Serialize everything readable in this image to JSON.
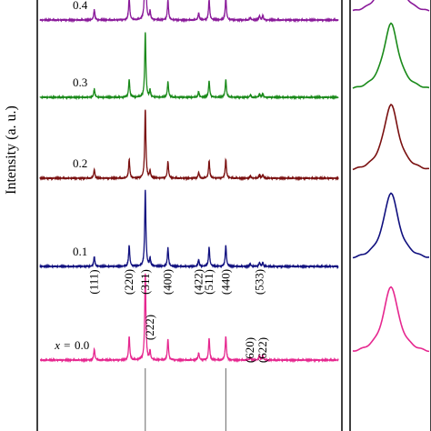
{
  "chart_data": {
    "type": "line",
    "title": "",
    "ylabel": "Intensity (a. u.)",
    "xlabel": "",
    "grid": false,
    "x_prefix": "x =",
    "x_range": [
      0,
      100
    ],
    "series": [
      {
        "name": "0.0",
        "color": "#e6278f",
        "baseline": 396,
        "peak_scale": 1.0
      },
      {
        "name": "0.1",
        "color": "#10107f",
        "baseline": 293,
        "peak_scale": 0.88
      },
      {
        "name": "0.2",
        "color": "#7a1010",
        "baseline": 196,
        "peak_scale": 0.8
      },
      {
        "name": "0.3",
        "color": "#1a8a1a",
        "baseline": 107,
        "peak_scale": 0.75
      },
      {
        "name": "0.4",
        "color": "#8a1a9a",
        "baseline": 22,
        "peak_scale": 0.95
      }
    ],
    "peaks": [
      {
        "pos": 18.2,
        "height": 12,
        "width": 0.35
      },
      {
        "pos": 29.9,
        "height": 26,
        "width": 0.35
      },
      {
        "pos": 35.3,
        "height": 95,
        "width": 0.35
      },
      {
        "pos": 36.9,
        "height": 10,
        "width": 0.3
      },
      {
        "pos": 42.9,
        "height": 23,
        "width": 0.35
      },
      {
        "pos": 53.2,
        "height": 8,
        "width": 0.35
      },
      {
        "pos": 56.7,
        "height": 24,
        "width": 0.35
      },
      {
        "pos": 62.3,
        "height": 26,
        "width": 0.35
      },
      {
        "pos": 70.5,
        "height": 3,
        "width": 0.35
      },
      {
        "pos": 73.6,
        "height": 5,
        "width": 0.35
      },
      {
        "pos": 74.7,
        "height": 5,
        "width": 0.3
      }
    ],
    "reference_lines": [
      35.3,
      62.3
    ],
    "miller_labels": [
      {
        "text": "(111)",
        "pos": 18.2
      },
      {
        "text": "(220)",
        "pos": 29.9
      },
      {
        "text": "(311)",
        "pos": 35.3
      },
      {
        "text": "(222)",
        "pos": 36.9
      },
      {
        "text": "(400)",
        "pos": 42.9
      },
      {
        "text": "(422)",
        "pos": 53.2
      },
      {
        "text": "(511)",
        "pos": 56.7
      },
      {
        "text": "(440)",
        "pos": 62.3
      },
      {
        "text": "(620)",
        "pos": 70.5
      },
      {
        "text": "(533)",
        "pos": 73.6
      },
      {
        "text": "(622)",
        "pos": 74.7
      }
    ]
  }
}
